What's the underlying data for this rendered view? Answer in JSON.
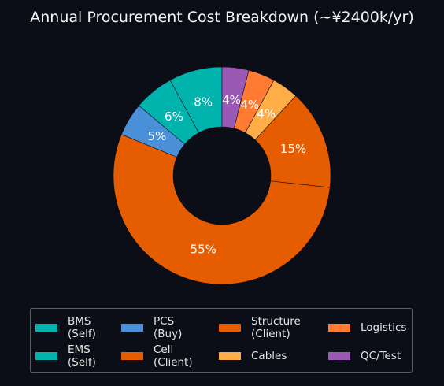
{
  "chart_data": {
    "type": "pie",
    "style": "donut",
    "title": "Annual Procurement Cost Breakdown (~¥2400k/yr)",
    "labels": [
      "BMS\n(Self)",
      "EMS\n(Self)",
      "PCS\n(Buy)",
      "Cell\n(Client)",
      "Structure\n(Client)",
      "Cables",
      "Logistics",
      "QC/Test"
    ],
    "values": [
      8,
      6,
      5,
      55,
      15,
      4,
      4,
      4
    ],
    "value_labels": [
      "8%",
      "6%",
      "5%",
      "55%",
      "15%",
      "4%",
      "4%",
      "4%"
    ],
    "colors": [
      "#00b3ad",
      "#00b3ad",
      "#4a90d9",
      "#e65c00",
      "#e65c00",
      "#ffad47",
      "#ff7a33",
      "#9b59b6"
    ],
    "start_angle_deg": 90,
    "direction": "counterclockwise",
    "legend_position": "bottom-center",
    "legend_columns": 4
  }
}
